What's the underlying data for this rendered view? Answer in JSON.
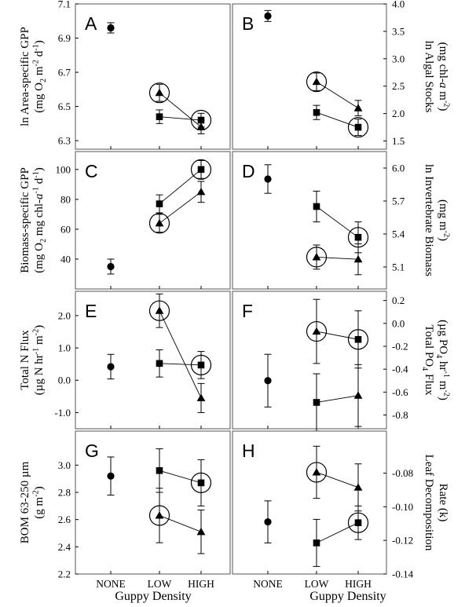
{
  "chart_data": [
    {
      "type": "scatter",
      "panel_letter": "A",
      "categories": [
        "NONE",
        "LOW",
        "HIGH"
      ],
      "ylabel_lines": [
        "ln Area-specific GPP",
        "(mg O|2| m|-2| d|-1|)"
      ],
      "yaxis_side": "left",
      "ylim": [
        6.25,
        7.1
      ],
      "yticks": [
        6.3,
        6.5,
        6.7,
        6.9,
        7.1
      ],
      "ytick_labels": [
        "6.3",
        "6.5",
        "6.7",
        "6.9",
        "7.1"
      ],
      "series": [
        {
          "marker": "circle",
          "points": [
            {
              "x": "NONE",
              "y": 6.96,
              "err": 0.03
            }
          ]
        },
        {
          "marker": "square",
          "points": [
            {
              "x": "LOW",
              "y": 6.44,
              "err": 0.04
            },
            {
              "x": "HIGH",
              "y": 6.42,
              "err": 0.04
            }
          ]
        },
        {
          "marker": "triangle",
          "points": [
            {
              "x": "LOW",
              "y": 6.58,
              "err": 0.05
            },
            {
              "x": "HIGH",
              "y": 6.38,
              "err": 0.04
            }
          ]
        }
      ],
      "circled": [
        {
          "marker": "triangle",
          "x": "LOW"
        },
        {
          "marker": "square",
          "x": "HIGH"
        }
      ],
      "connectors": [
        [
          "square",
          "LOW",
          "square",
          "HIGH"
        ],
        [
          "triangle",
          "LOW",
          "triangle",
          "HIGH"
        ]
      ]
    },
    {
      "type": "scatter",
      "panel_letter": "B",
      "categories": [
        "NONE",
        "LOW",
        "HIGH"
      ],
      "ylabel_lines": [
        "ln Algal Stocks",
        "(mg chl-^a^ m|-2|)"
      ],
      "yaxis_side": "right",
      "ylim": [
        1.35,
        4.0
      ],
      "yticks": [
        1.5,
        2.0,
        2.5,
        3.0,
        3.5,
        4.0
      ],
      "ytick_labels": [
        "1.5",
        "2.0",
        "2.5",
        "3.0",
        "3.5",
        "4.0"
      ],
      "series": [
        {
          "marker": "circle",
          "points": [
            {
              "x": "NONE",
              "y": 3.78,
              "err": 0.1
            }
          ]
        },
        {
          "marker": "square",
          "points": [
            {
              "x": "LOW",
              "y": 2.02,
              "err": 0.13
            },
            {
              "x": "HIGH",
              "y": 1.75,
              "err": 0.15
            }
          ]
        },
        {
          "marker": "triangle",
          "points": [
            {
              "x": "LOW",
              "y": 2.58,
              "err": 0.16
            },
            {
              "x": "HIGH",
              "y": 2.1,
              "err": 0.14
            }
          ]
        }
      ],
      "circled": [
        {
          "marker": "triangle",
          "x": "LOW"
        },
        {
          "marker": "square",
          "x": "HIGH"
        }
      ],
      "connectors": [
        [
          "square",
          "LOW",
          "square",
          "HIGH"
        ],
        [
          "triangle",
          "LOW",
          "triangle",
          "HIGH"
        ]
      ]
    },
    {
      "type": "scatter",
      "panel_letter": "C",
      "categories": [
        "NONE",
        "LOW",
        "HIGH"
      ],
      "ylabel_lines": [
        "Biomass-specific GPP",
        "(mg O|2| mg chl-^a^|-1| d|-1|)"
      ],
      "yaxis_side": "left",
      "ylim": [
        20,
        112
      ],
      "yticks": [
        40,
        60,
        80,
        100
      ],
      "ytick_labels": [
        "40",
        "60",
        "80",
        "100"
      ],
      "series": [
        {
          "marker": "circle",
          "points": [
            {
              "x": "NONE",
              "y": 35,
              "err": 5
            }
          ]
        },
        {
          "marker": "square",
          "points": [
            {
              "x": "LOW",
              "y": 77,
              "err": 6
            },
            {
              "x": "HIGH",
              "y": 100,
              "err": 6
            }
          ]
        },
        {
          "marker": "triangle",
          "points": [
            {
              "x": "LOW",
              "y": 64,
              "err": 6
            },
            {
              "x": "HIGH",
              "y": 85,
              "err": 7
            }
          ]
        }
      ],
      "circled": [
        {
          "marker": "triangle",
          "x": "LOW"
        },
        {
          "marker": "square",
          "x": "HIGH"
        }
      ],
      "connectors": [
        [
          "square",
          "LOW",
          "square",
          "HIGH"
        ],
        [
          "triangle",
          "LOW",
          "triangle",
          "HIGH"
        ]
      ]
    },
    {
      "type": "scatter",
      "panel_letter": "D",
      "categories": [
        "NONE",
        "LOW",
        "HIGH"
      ],
      "ylabel_lines": [
        "ln Invertebrate Biomass",
        "(mg m|-2|)"
      ],
      "yaxis_side": "right",
      "ylim": [
        4.9,
        6.15
      ],
      "yticks": [
        5.1,
        5.4,
        5.7,
        6.0
      ],
      "ytick_labels": [
        "5.1",
        "5.4",
        "5.7",
        "6.0"
      ],
      "series": [
        {
          "marker": "circle",
          "points": [
            {
              "x": "NONE",
              "y": 5.9,
              "err": 0.13
            }
          ]
        },
        {
          "marker": "square",
          "points": [
            {
              "x": "LOW",
              "y": 5.65,
              "err": 0.14
            },
            {
              "x": "HIGH",
              "y": 5.37,
              "err": 0.14
            }
          ]
        },
        {
          "marker": "triangle",
          "points": [
            {
              "x": "LOW",
              "y": 5.19,
              "err": 0.11
            },
            {
              "x": "HIGH",
              "y": 5.17,
              "err": 0.14
            }
          ]
        }
      ],
      "circled": [
        {
          "marker": "triangle",
          "x": "LOW"
        },
        {
          "marker": "square",
          "x": "HIGH"
        }
      ],
      "connectors": [
        [
          "square",
          "LOW",
          "square",
          "HIGH"
        ],
        [
          "triangle",
          "LOW",
          "triangle",
          "HIGH"
        ]
      ]
    },
    {
      "type": "scatter",
      "panel_letter": "E",
      "categories": [
        "NONE",
        "LOW",
        "HIGH"
      ],
      "ylabel_lines": [
        "Total N Flux",
        "(µg N hr|-1| m|-2|)"
      ],
      "yaxis_side": "left",
      "ylim": [
        -1.5,
        2.75
      ],
      "yticks": [
        -1.0,
        0.0,
        1.0,
        2.0
      ],
      "ytick_labels": [
        "-1.0",
        "0.0",
        "1.0",
        "2.0"
      ],
      "series": [
        {
          "marker": "circle",
          "points": [
            {
              "x": "NONE",
              "y": 0.42,
              "err": 0.38
            }
          ]
        },
        {
          "marker": "square",
          "points": [
            {
              "x": "LOW",
              "y": 0.52,
              "err": 0.42
            },
            {
              "x": "HIGH",
              "y": 0.47,
              "err": 0.42
            }
          ]
        },
        {
          "marker": "triangle",
          "points": [
            {
              "x": "LOW",
              "y": 2.15,
              "err": 0.52
            },
            {
              "x": "HIGH",
              "y": -0.55,
              "err": 0.45
            }
          ]
        }
      ],
      "circled": [
        {
          "marker": "triangle",
          "x": "LOW"
        },
        {
          "marker": "square",
          "x": "HIGH"
        }
      ],
      "connectors": [
        [
          "square",
          "LOW",
          "square",
          "HIGH"
        ],
        [
          "triangle",
          "LOW",
          "triangle",
          "HIGH"
        ]
      ]
    },
    {
      "type": "scatter",
      "panel_letter": "F",
      "categories": [
        "NONE",
        "LOW",
        "HIGH"
      ],
      "ylabel_lines": [
        "Total PO|4| Flux",
        "(µg PO|4| hr|-1| m|-2|)"
      ],
      "yaxis_side": "right",
      "ylim": [
        -0.92,
        0.28
      ],
      "yticks": [
        -0.8,
        -0.6,
        -0.4,
        -0.2,
        0.0,
        0.2
      ],
      "ytick_labels": [
        "-0.8",
        "-0.6",
        "-0.4",
        "-0.2",
        "0.0",
        "0.2"
      ],
      "series": [
        {
          "marker": "circle",
          "points": [
            {
              "x": "NONE",
              "y": -0.5,
              "err": 0.23
            }
          ]
        },
        {
          "marker": "square",
          "points": [
            {
              "x": "LOW",
              "y": -0.69,
              "err": 0.25
            },
            {
              "x": "HIGH",
              "y": -0.14,
              "err": 0.25
            }
          ]
        },
        {
          "marker": "triangle",
          "points": [
            {
              "x": "LOW",
              "y": -0.07,
              "err": 0.28
            },
            {
              "x": "HIGH",
              "y": -0.63,
              "err": 0.27
            }
          ]
        }
      ],
      "circled": [
        {
          "marker": "triangle",
          "x": "LOW"
        },
        {
          "marker": "square",
          "x": "HIGH"
        }
      ],
      "connectors": [
        [
          "square",
          "LOW",
          "triangle",
          "HIGH"
        ],
        [
          "triangle",
          "LOW",
          "square",
          "HIGH"
        ]
      ]
    },
    {
      "type": "scatter",
      "panel_letter": "G",
      "categories": [
        "NONE",
        "LOW",
        "HIGH"
      ],
      "ylabel_lines": [
        "BOM 63-250 µm",
        "(g m|-2|)"
      ],
      "yaxis_side": "left",
      "ylim": [
        2.2,
        3.25
      ],
      "yticks": [
        2.2,
        2.4,
        2.6,
        2.8,
        3.0
      ],
      "ytick_labels": [
        "2.2",
        "2.4",
        "2.6",
        "2.8",
        "3.0"
      ],
      "series": [
        {
          "marker": "circle",
          "points": [
            {
              "x": "NONE",
              "y": 2.92,
              "err": 0.14
            }
          ]
        },
        {
          "marker": "square",
          "points": [
            {
              "x": "LOW",
              "y": 2.96,
              "err": 0.16
            },
            {
              "x": "HIGH",
              "y": 2.87,
              "err": 0.17
            }
          ]
        },
        {
          "marker": "triangle",
          "points": [
            {
              "x": "LOW",
              "y": 2.63,
              "err": 0.2
            },
            {
              "x": "HIGH",
              "y": 2.51,
              "err": 0.16
            }
          ]
        }
      ],
      "circled": [
        {
          "marker": "triangle",
          "x": "LOW"
        },
        {
          "marker": "square",
          "x": "HIGH"
        }
      ],
      "connectors": [
        [
          "square",
          "LOW",
          "square",
          "HIGH"
        ],
        [
          "triangle",
          "LOW",
          "triangle",
          "HIGH"
        ]
      ]
    },
    {
      "type": "scatter",
      "panel_letter": "H",
      "categories": [
        "NONE",
        "LOW",
        "HIGH"
      ],
      "ylabel_lines": [
        "Leaf Decomposition",
        "Rate (k)"
      ],
      "yaxis_side": "right",
      "ylim": [
        -0.14,
        -0.055
      ],
      "yticks": [
        -0.14,
        -0.12,
        -0.1,
        -0.08
      ],
      "ytick_labels": [
        "-0.14",
        "-0.12",
        "-0.10",
        "-0.08"
      ],
      "series": [
        {
          "marker": "circle",
          "points": [
            {
              "x": "NONE",
              "y": -0.109,
              "err": 0.0125
            }
          ]
        },
        {
          "marker": "square",
          "points": [
            {
              "x": "LOW",
              "y": -0.1215,
              "err": 0.014
            },
            {
              "x": "HIGH",
              "y": -0.1095,
              "err": 0.01
            }
          ]
        },
        {
          "marker": "triangle",
          "points": [
            {
              "x": "LOW",
              "y": -0.0795,
              "err": 0.0155
            },
            {
              "x": "HIGH",
              "y": -0.0885,
              "err": 0.014
            }
          ]
        }
      ],
      "circled": [
        {
          "marker": "triangle",
          "x": "LOW"
        },
        {
          "marker": "square",
          "x": "HIGH"
        }
      ],
      "connectors": [
        [
          "square",
          "LOW",
          "square",
          "HIGH"
        ],
        [
          "triangle",
          "LOW",
          "triangle",
          "HIGH"
        ]
      ]
    }
  ],
  "xlabels": {
    "left": "Guppy Density",
    "right": "Guppy Density"
  },
  "colors": {
    "ink": "#000000",
    "frame": "#555555",
    "background": "#ffffff"
  }
}
